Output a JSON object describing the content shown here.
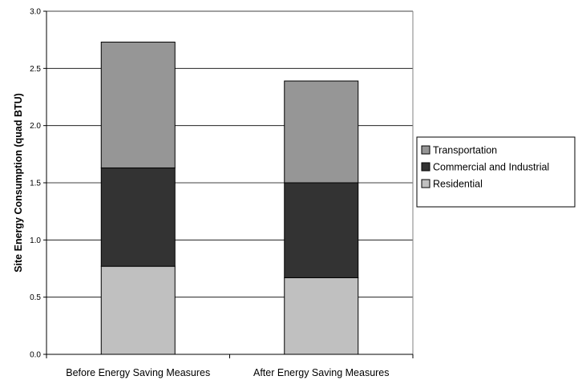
{
  "chart_data": {
    "type": "bar",
    "stacked": true,
    "title": "",
    "xlabel": "",
    "ylabel": "Site Energy Consumption (quad BTU)",
    "ylim": [
      0,
      3.0
    ],
    "yticks": [
      "0.0",
      "0.5",
      "1.0",
      "1.5",
      "2.0",
      "2.5",
      "3.0"
    ],
    "grid": true,
    "legend_position": "right",
    "categories": [
      "Before Energy Saving Measures",
      "After Energy Saving Measures"
    ],
    "series": [
      {
        "name": "Residential",
        "values": [
          0.77,
          0.67
        ],
        "color": "#c0c0c0"
      },
      {
        "name": "Commercial and Industrial",
        "values": [
          0.86,
          0.83
        ],
        "color": "#333333"
      },
      {
        "name": "Transportation",
        "values": [
          1.1,
          0.89
        ],
        "color": "#969696"
      }
    ],
    "legend_order": [
      "Transportation",
      "Commercial and Industrial",
      "Residential"
    ]
  }
}
